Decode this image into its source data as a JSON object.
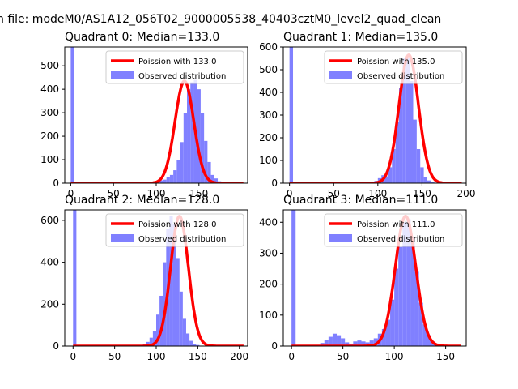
{
  "suptitle": "n file: modeM0/AS1A12_056T02_9000005538_40403cztM0_level2_quad_clean",
  "colors": {
    "hist": "#8080ff",
    "fit": "#ff0000"
  },
  "chart_data": [
    {
      "type": "bar",
      "title": "Quadrant 0: Median=133.0",
      "legend": {
        "placement": "upper-right",
        "fit_label": "Poission with 133.0",
        "hist_label": "Observed distribution"
      },
      "xlim": [
        -7,
        207
      ],
      "ylim": [
        0,
        580
      ],
      "xticks": [
        0,
        50,
        100,
        150
      ],
      "yticks": [
        0,
        100,
        200,
        300,
        400,
        500
      ],
      "median": 133,
      "peak": 435,
      "bin_start": 0,
      "bin_width": 4,
      "hist": [
        580,
        0,
        0,
        0,
        0,
        0,
        0,
        0,
        0,
        0,
        0,
        0,
        0,
        0,
        0,
        0,
        0,
        0,
        0,
        0,
        0,
        0,
        0,
        2,
        5,
        8,
        12,
        15,
        25,
        35,
        55,
        100,
        175,
        300,
        400,
        430,
        440,
        400,
        300,
        180,
        90,
        35,
        20,
        8,
        3,
        0,
        0,
        0,
        0
      ]
    },
    {
      "type": "bar",
      "title": "Quadrant 1: Median=135.0",
      "legend": {
        "placement": "upper-right",
        "fit_label": "Poission with 135.0",
        "hist_label": "Observed distribution"
      },
      "xlim": [
        -7,
        200
      ],
      "ylim": [
        0,
        600
      ],
      "xticks": [
        0,
        50,
        100,
        150,
        200
      ],
      "yticks": [
        0,
        100,
        200,
        300,
        400,
        500,
        600
      ],
      "median": 135,
      "peak": 565,
      "bin_start": 0,
      "bin_width": 4,
      "hist": [
        600,
        0,
        0,
        0,
        0,
        0,
        0,
        0,
        0,
        0,
        0,
        0,
        0,
        0,
        0,
        0,
        0,
        0,
        0,
        0,
        0,
        0,
        0,
        5,
        10,
        22,
        35,
        30,
        70,
        150,
        270,
        420,
        550,
        550,
        450,
        280,
        150,
        70,
        25,
        12,
        5,
        2,
        0,
        0,
        0,
        0,
        0,
        0
      ]
    },
    {
      "type": "bar",
      "title": "Quadrant 2: Median=128.0",
      "legend": {
        "placement": "upper-right",
        "fit_label": "Poission with 128.0",
        "hist_label": "Observed distribution"
      },
      "xlim": [
        -10,
        210
      ],
      "ylim": [
        0,
        650
      ],
      "xticks": [
        0,
        50,
        100,
        150,
        200
      ],
      "yticks": [
        0,
        200,
        400,
        600
      ],
      "median": 128,
      "peak": 620,
      "bin_start": 0,
      "bin_width": 4,
      "hist": [
        650,
        0,
        0,
        0,
        0,
        0,
        0,
        0,
        0,
        0,
        0,
        0,
        0,
        0,
        0,
        0,
        0,
        0,
        0,
        0,
        5,
        10,
        20,
        40,
        70,
        150,
        240,
        400,
        560,
        620,
        580,
        420,
        260,
        130,
        60,
        25,
        10,
        5,
        2,
        0,
        0,
        0,
        0,
        0,
        0,
        0,
        0,
        0,
        0,
        0
      ]
    },
    {
      "type": "bar",
      "title": "Quadrant 3: Median=111.0",
      "legend": {
        "placement": "upper-right",
        "fit_label": "Poission with 111.0",
        "hist_label": "Observed distribution"
      },
      "xlim": [
        -8,
        170
      ],
      "ylim": [
        0,
        440
      ],
      "xticks": [
        0,
        50,
        100,
        150
      ],
      "yticks": [
        0,
        100,
        200,
        300,
        400
      ],
      "median": 111,
      "peak": 420,
      "bin_start": 0,
      "bin_width": 4,
      "hist": [
        440,
        0,
        0,
        0,
        0,
        0,
        0,
        10,
        20,
        30,
        40,
        35,
        25,
        12,
        8,
        15,
        18,
        15,
        12,
        18,
        25,
        40,
        55,
        85,
        150,
        250,
        320,
        400,
        410,
        350,
        240,
        140,
        70,
        35,
        15,
        8,
        3,
        0,
        0,
        0,
        0,
        0
      ]
    }
  ]
}
